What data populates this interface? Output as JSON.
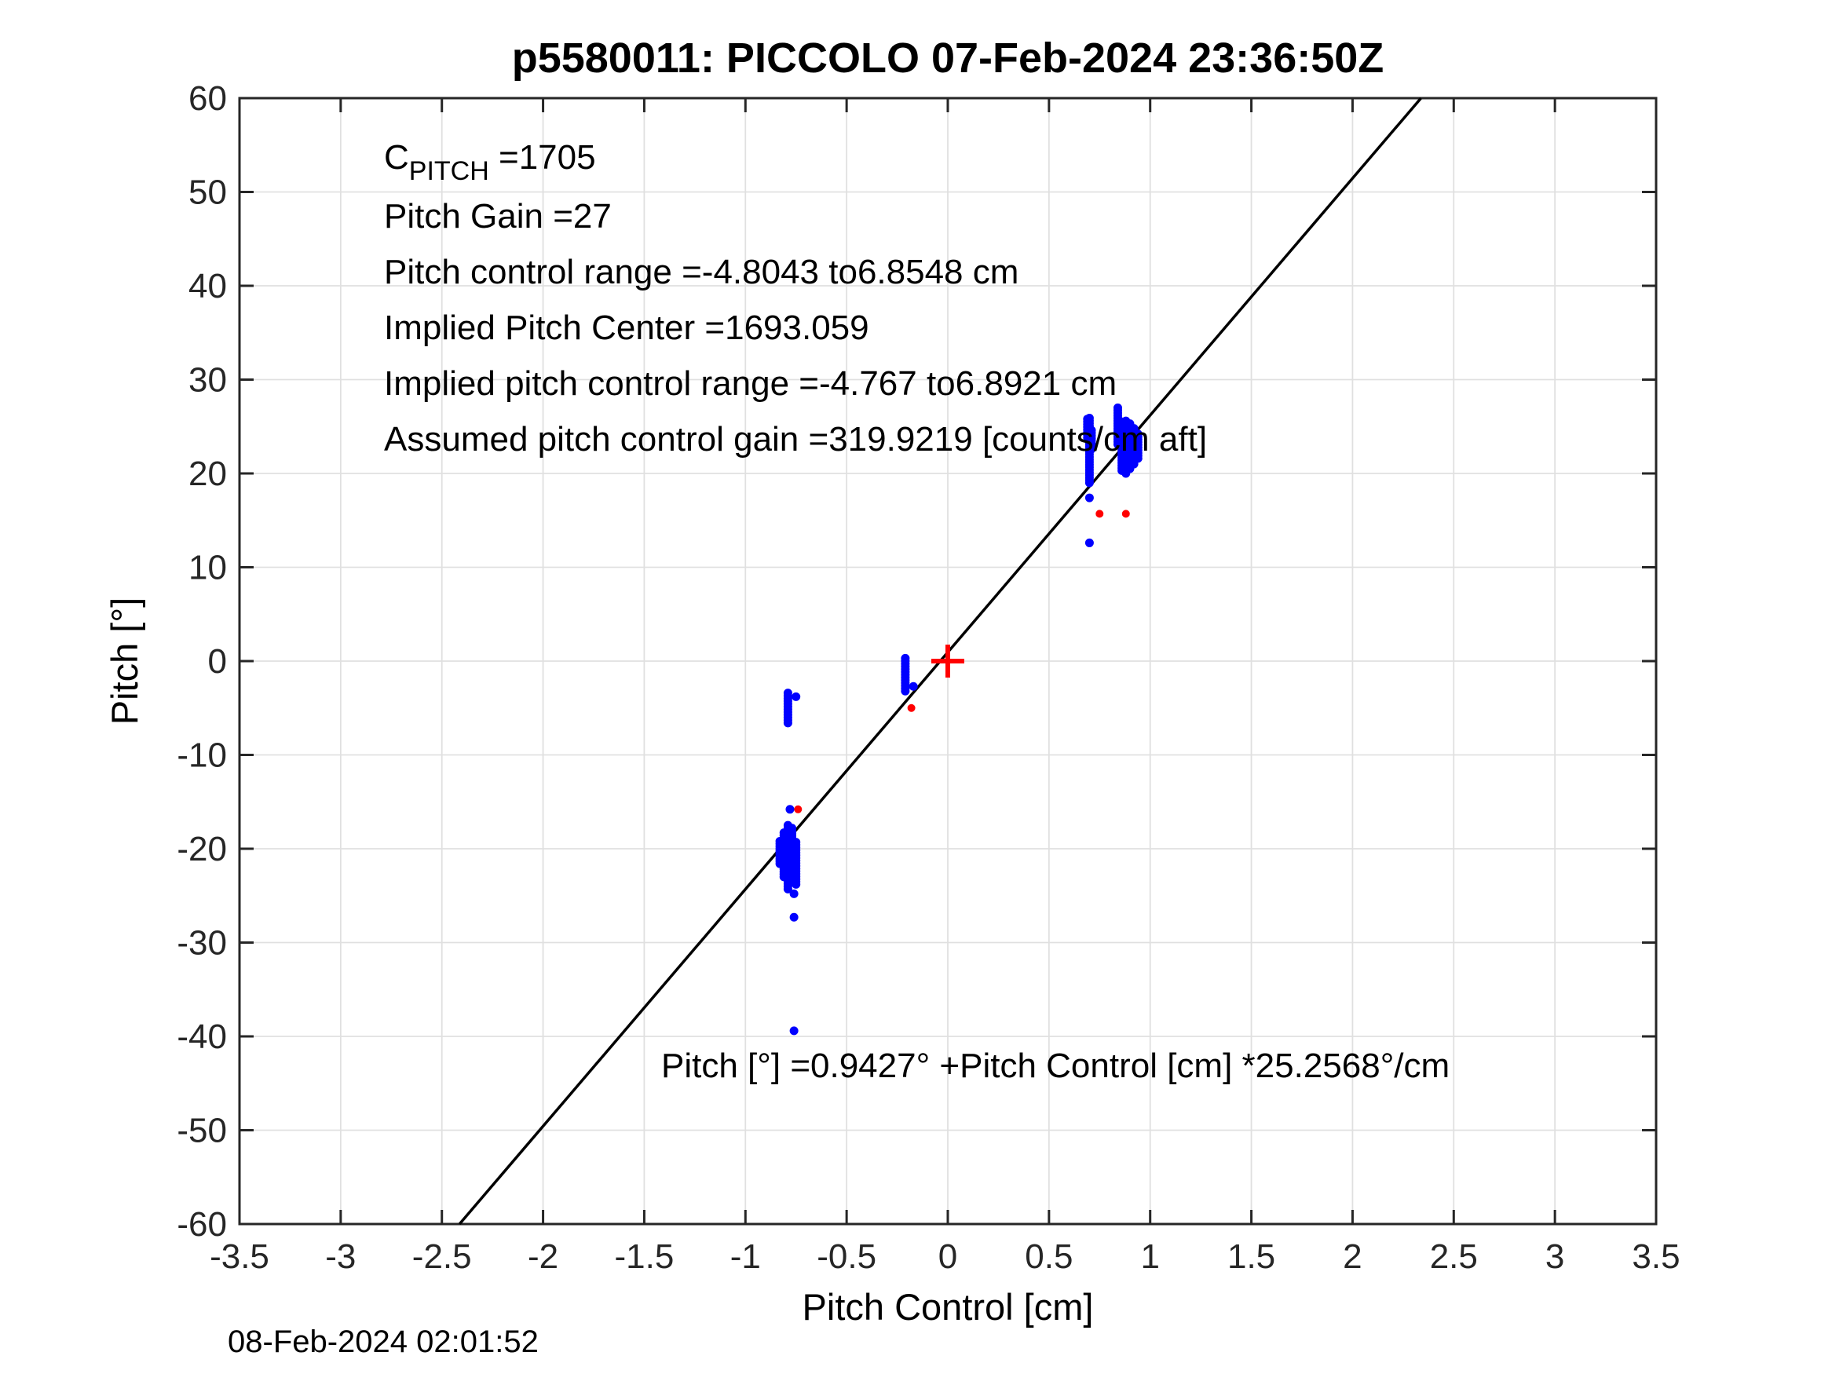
{
  "title": "p5580011: PICCOLO 07-Feb-2024 23:36:50Z",
  "timestamp": "08-Feb-2024 02:01:52",
  "colors": {
    "data_blue": "#0000ff",
    "outlier_red": "#ff0000",
    "fit_line": "#000000",
    "grid": "#e0e0e0",
    "axis": "#262626"
  },
  "annotations": {
    "cpitch": {
      "base": "C",
      "sub": "PITCH",
      "rest": " =1705"
    },
    "line2": "Pitch Gain =27",
    "line3": "Pitch control range =-4.8043 to6.8548 cm",
    "line4": "Implied Pitch Center =1693.059",
    "line5": "Implied pitch control range =-4.767 to6.8921 cm",
    "line6": "Assumed pitch control gain =319.9219 [counts/cm aft]",
    "fit_label": "Pitch [°] =0.9427° +Pitch Control [cm] *25.2568°/cm"
  },
  "chart_data": {
    "type": "scatter",
    "title": "p5580011: PICCOLO 07-Feb-2024 23:36:50Z",
    "xlabel": "Pitch Control [cm]",
    "ylabel": "Pitch [°]",
    "xlim": [
      -3.5,
      3.5
    ],
    "ylim": [
      -60,
      60
    ],
    "grid": true,
    "xticks": [
      {
        "v": -3.5,
        "label": "-3.5"
      },
      {
        "v": -3,
        "label": "-3"
      },
      {
        "v": -2.5,
        "label": "-2.5"
      },
      {
        "v": -2,
        "label": "-2"
      },
      {
        "v": -1.5,
        "label": "-1.5"
      },
      {
        "v": -1,
        "label": "-1"
      },
      {
        "v": -0.5,
        "label": "-0.5"
      },
      {
        "v": 0,
        "label": "0"
      },
      {
        "v": 0.5,
        "label": "0.5"
      },
      {
        "v": 1,
        "label": "1"
      },
      {
        "v": 1.5,
        "label": "1.5"
      },
      {
        "v": 2,
        "label": "2"
      },
      {
        "v": 2.5,
        "label": "2.5"
      },
      {
        "v": 3,
        "label": "3"
      },
      {
        "v": 3.5,
        "label": "3.5"
      }
    ],
    "yticks": [
      {
        "v": -60,
        "label": "-60"
      },
      {
        "v": -50,
        "label": "-50"
      },
      {
        "v": -40,
        "label": "-40"
      },
      {
        "v": -30,
        "label": "-30"
      },
      {
        "v": -20,
        "label": "-20"
      },
      {
        "v": -10,
        "label": "-10"
      },
      {
        "v": 0,
        "label": "0"
      },
      {
        "v": 10,
        "label": "10"
      },
      {
        "v": 20,
        "label": "20"
      },
      {
        "v": 30,
        "label": "30"
      },
      {
        "v": 40,
        "label": "40"
      },
      {
        "v": 50,
        "label": "50"
      },
      {
        "v": 60,
        "label": "60"
      }
    ],
    "fit_line": {
      "intercept": 0.9427,
      "slope": 25.2568
    },
    "origin_marker": {
      "x": 0,
      "y": 0
    },
    "series": [
      {
        "name": "pitch-vs-control-blue",
        "color": "#0000ff",
        "stripes": [
          {
            "x": -0.83,
            "y1": -19.2,
            "y2": -21.6
          },
          {
            "x": -0.81,
            "y1": -18.3,
            "y2": -23.0
          },
          {
            "x": -0.79,
            "y1": -17.5,
            "y2": -24.3
          },
          {
            "x": -0.77,
            "y1": -17.8,
            "y2": -23.5
          },
          {
            "x": -0.75,
            "y1": -19.3,
            "y2": -23.8
          },
          {
            "x": -0.79,
            "y1": -3.4,
            "y2": -6.6
          },
          {
            "x": -0.21,
            "y1": 0.3,
            "y2": -3.2
          },
          {
            "x": 0.69,
            "y1": 25.8,
            "y2": 23.8
          },
          {
            "x": 0.7,
            "y1": 25.9,
            "y2": 19.0
          },
          {
            "x": 0.71,
            "y1": 24.6,
            "y2": 22.6
          },
          {
            "x": 0.84,
            "y1": 27.0,
            "y2": 23.1
          },
          {
            "x": 0.86,
            "y1": 25.5,
            "y2": 20.3
          },
          {
            "x": 0.88,
            "y1": 25.6,
            "y2": 20.0
          },
          {
            "x": 0.9,
            "y1": 25.3,
            "y2": 20.5
          },
          {
            "x": 0.92,
            "y1": 24.8,
            "y2": 21.0
          },
          {
            "x": 0.94,
            "y1": 24.2,
            "y2": 21.6
          }
        ],
        "points": [
          {
            "x": 0.7,
            "y": 17.4
          },
          {
            "x": 0.7,
            "y": 12.6
          },
          {
            "x": -0.75,
            "y": -3.8
          },
          {
            "x": -0.17,
            "y": -2.7
          },
          {
            "x": -0.78,
            "y": -15.8
          },
          {
            "x": -0.76,
            "y": -24.8
          },
          {
            "x": -0.76,
            "y": -27.3
          },
          {
            "x": -0.76,
            "y": -39.4
          }
        ]
      },
      {
        "name": "outliers-red",
        "color": "#ff0000",
        "stripes": [],
        "points": [
          {
            "x": -0.74,
            "y": -15.8
          },
          {
            "x": -0.18,
            "y": -5.0
          },
          {
            "x": 0.75,
            "y": 15.7
          },
          {
            "x": 0.88,
            "y": 15.7
          }
        ]
      }
    ]
  }
}
